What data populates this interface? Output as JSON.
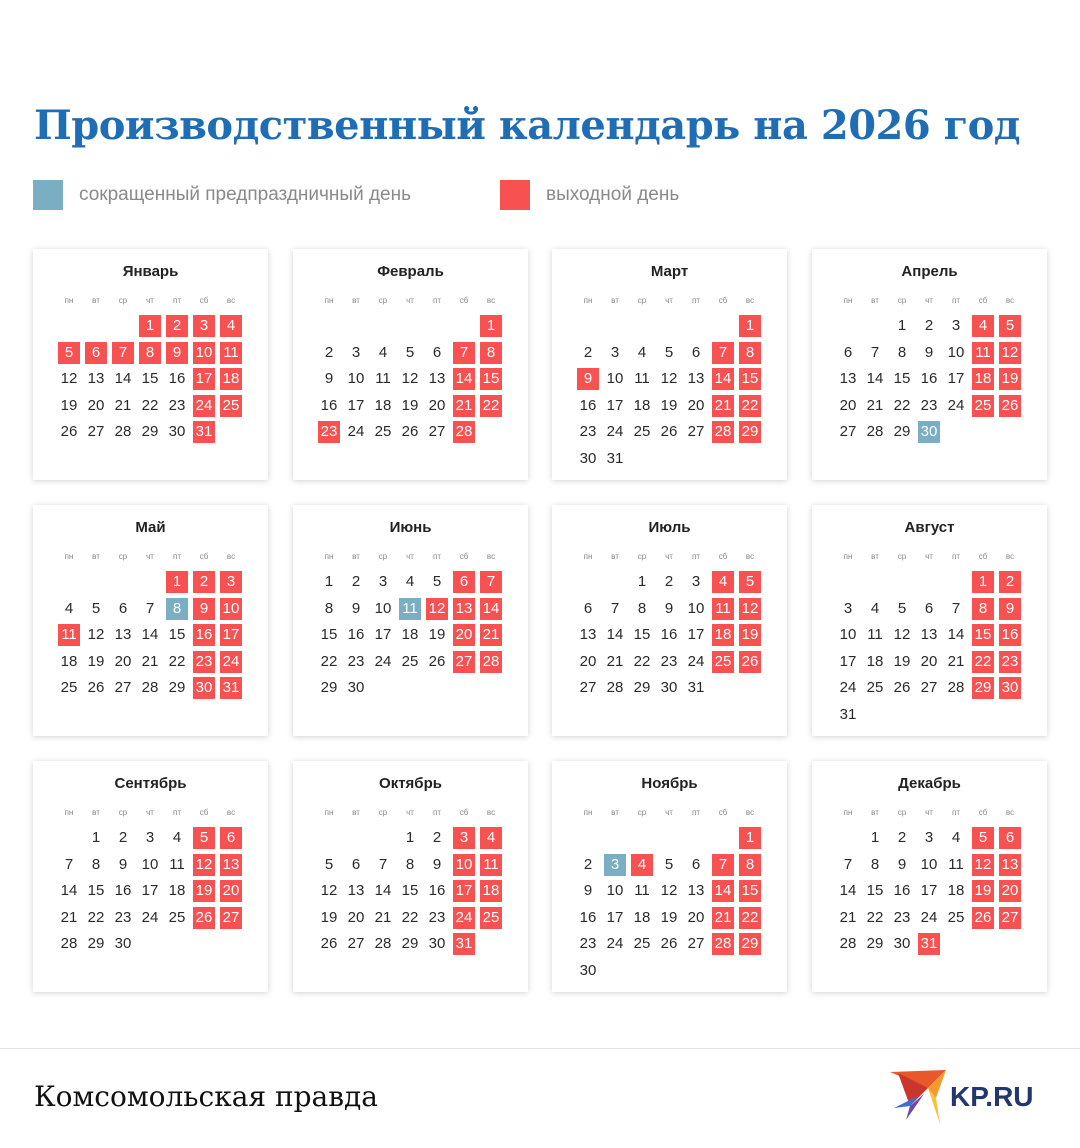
{
  "title": "Производственный календарь на 2026 год",
  "legend": [
    {
      "label": "сокращенный предпраздничный день",
      "color": "#7aaec2"
    },
    {
      "label": "выходной день",
      "color": "#f75151"
    }
  ],
  "weekdays": [
    "пн",
    "вт",
    "ср",
    "чт",
    "пт",
    "сб",
    "вс"
  ],
  "year": 2026,
  "months": [
    {
      "name": "Январь",
      "first_weekday": "чт",
      "days": 31,
      "holidays": [
        1,
        2,
        3,
        4,
        5,
        6,
        7,
        8,
        9,
        10,
        11,
        17,
        18,
        24,
        25,
        31
      ],
      "short": []
    },
    {
      "name": "Февраль",
      "first_weekday": "вс",
      "days": 28,
      "holidays": [
        1,
        7,
        8,
        14,
        15,
        21,
        22,
        23,
        28
      ],
      "short": []
    },
    {
      "name": "Март",
      "first_weekday": "вс",
      "days": 31,
      "holidays": [
        1,
        7,
        8,
        9,
        14,
        15,
        21,
        22,
        28,
        29
      ],
      "short": []
    },
    {
      "name": "Апрель",
      "first_weekday": "ср",
      "days": 30,
      "holidays": [
        4,
        5,
        11,
        12,
        18,
        19,
        25,
        26
      ],
      "short": [
        30
      ]
    },
    {
      "name": "Май",
      "first_weekday": "пт",
      "days": 31,
      "holidays": [
        1,
        2,
        3,
        9,
        10,
        11,
        16,
        17,
        23,
        24,
        30,
        31
      ],
      "short": [
        8
      ]
    },
    {
      "name": "Июнь",
      "first_weekday": "пн",
      "days": 30,
      "holidays": [
        6,
        7,
        12,
        13,
        14,
        20,
        21,
        27,
        28
      ],
      "short": [
        11
      ]
    },
    {
      "name": "Июль",
      "first_weekday": "ср",
      "days": 31,
      "holidays": [
        4,
        5,
        11,
        12,
        18,
        19,
        25,
        26
      ],
      "short": []
    },
    {
      "name": "Август",
      "first_weekday": "сб",
      "days": 31,
      "holidays": [
        1,
        2,
        8,
        9,
        15,
        16,
        22,
        23,
        29,
        30
      ],
      "short": []
    },
    {
      "name": "Сентябрь",
      "first_weekday": "вт",
      "days": 30,
      "holidays": [
        5,
        6,
        12,
        13,
        19,
        20,
        26,
        27
      ],
      "short": []
    },
    {
      "name": "Октябрь",
      "first_weekday": "чт",
      "days": 31,
      "holidays": [
        3,
        4,
        10,
        11,
        17,
        18,
        24,
        25,
        31
      ],
      "short": []
    },
    {
      "name": "Ноябрь",
      "first_weekday": "вс",
      "days": 30,
      "holidays": [
        1,
        4,
        7,
        8,
        14,
        15,
        21,
        22,
        28,
        29
      ],
      "short": [
        3
      ]
    },
    {
      "name": "Декабрь",
      "first_weekday": "вт",
      "days": 31,
      "holidays": [
        5,
        6,
        12,
        13,
        19,
        20,
        26,
        27,
        31
      ],
      "short": []
    }
  ],
  "footer": {
    "brand": "Комсомольская правда",
    "logo_text": "KP.RU"
  }
}
